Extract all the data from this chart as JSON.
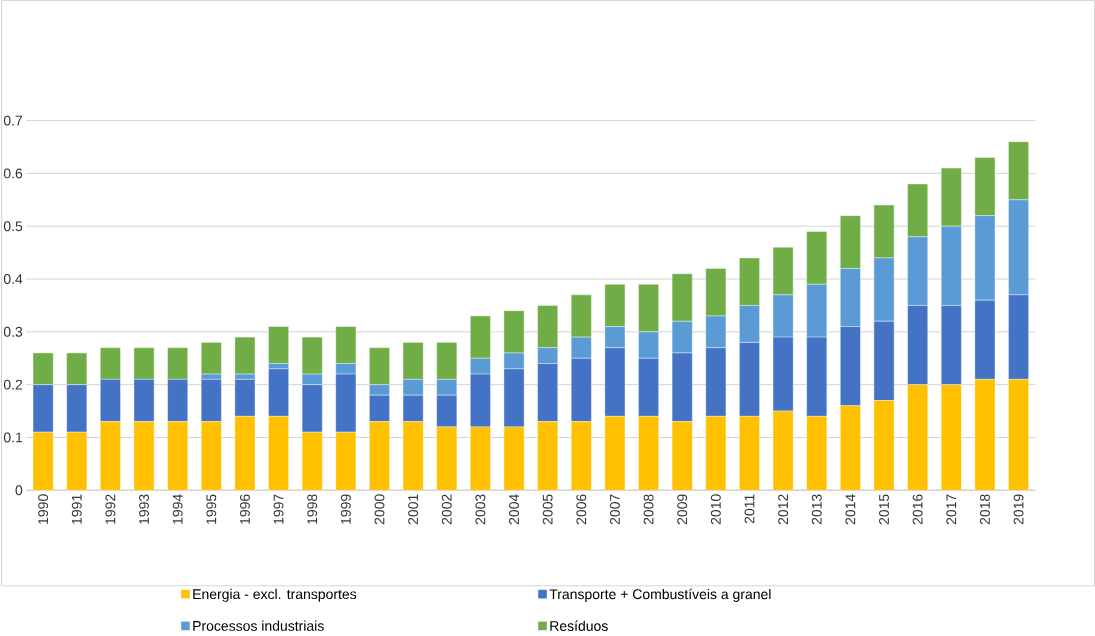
{
  "chart_data": {
    "type": "bar",
    "stacked": true,
    "categories": [
      "1990",
      "1991",
      "1992",
      "1993",
      "1994",
      "1995",
      "1996",
      "1997",
      "1998",
      "1999",
      "2000",
      "2001",
      "2002",
      "2003",
      "2004",
      "2005",
      "2006",
      "2007",
      "2008",
      "2009",
      "2010",
      "2011",
      "2012",
      "2013",
      "2014",
      "2015",
      "2016",
      "2017",
      "2018",
      "2019"
    ],
    "series": [
      {
        "name": "Energia - excl. transportes",
        "color": "#ffc000",
        "values": [
          0.11,
          0.11,
          0.13,
          0.13,
          0.13,
          0.13,
          0.14,
          0.14,
          0.11,
          0.11,
          0.13,
          0.13,
          0.12,
          0.12,
          0.12,
          0.13,
          0.13,
          0.14,
          0.14,
          0.13,
          0.14,
          0.14,
          0.15,
          0.14,
          0.16,
          0.17,
          0.2,
          0.2,
          0.21,
          0.21
        ]
      },
      {
        "name": "Transporte + Combustíveis a granel",
        "color": "#4472c4",
        "values": [
          0.09,
          0.09,
          0.08,
          0.08,
          0.08,
          0.08,
          0.07,
          0.09,
          0.09,
          0.11,
          0.05,
          0.05,
          0.06,
          0.1,
          0.11,
          0.11,
          0.12,
          0.13,
          0.11,
          0.13,
          0.13,
          0.14,
          0.14,
          0.15,
          0.15,
          0.15,
          0.15,
          0.15,
          0.15,
          0.16
        ]
      },
      {
        "name": "Processos industriais",
        "color": "#5b9bd5",
        "values": [
          0,
          0,
          0,
          0,
          0,
          0.01,
          0.01,
          0.01,
          0.02,
          0.02,
          0.02,
          0.03,
          0.03,
          0.03,
          0.03,
          0.03,
          0.04,
          0.04,
          0.05,
          0.06,
          0.06,
          0.07,
          0.08,
          0.1,
          0.11,
          0.12,
          0.13,
          0.15,
          0.16,
          0.18
        ]
      },
      {
        "name": "Resíduos",
        "color": "#70ad47",
        "values": [
          0.06,
          0.06,
          0.06,
          0.06,
          0.06,
          0.06,
          0.07,
          0.07,
          0.07,
          0.07,
          0.07,
          0.07,
          0.07,
          0.08,
          0.08,
          0.08,
          0.08,
          0.08,
          0.09,
          0.09,
          0.09,
          0.09,
          0.09,
          0.1,
          0.1,
          0.1,
          0.1,
          0.11,
          0.11,
          0.11
        ]
      }
    ],
    "ylim": [
      0,
      0.7
    ],
    "yticks": [
      0,
      0.1,
      0.2,
      0.3,
      0.4,
      0.5,
      0.6,
      0.7
    ],
    "grid": "y",
    "legend": "bottom"
  }
}
